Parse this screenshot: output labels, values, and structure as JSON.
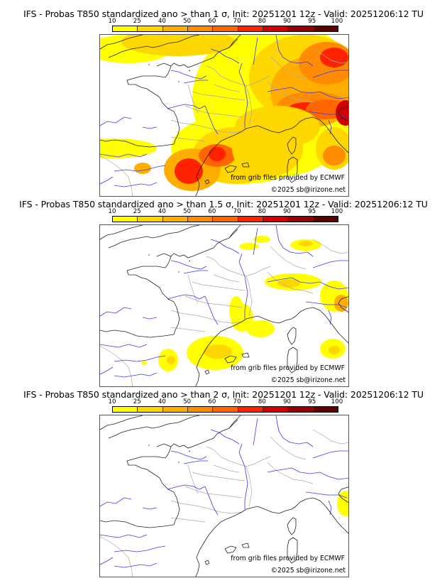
{
  "colorbar": {
    "ticks": [
      "10",
      "25",
      "40",
      "50",
      "60",
      "70",
      "80",
      "90",
      "95",
      "100"
    ],
    "colors": [
      "#ffff00",
      "#ffd700",
      "#ffae00",
      "#ff8c00",
      "#ff6600",
      "#ff2200",
      "#d40000",
      "#960000",
      "#5c0000"
    ]
  },
  "panels": [
    {
      "title": "IFS - Probas T850  standardized ano > than 1 σ, Init: 20251201 12z - Valid: 20251206:12 TU",
      "threshold_sigma": 1,
      "credit_source": "from grib files provided by ECMWF",
      "credit_copyright": "©2025 sb@irizone.net"
    },
    {
      "title": "IFS - Probas T850  standardized ano > than 1.5 σ, Init: 20251201 12z - Valid: 20251206:12 TU",
      "threshold_sigma": 1.5,
      "credit_source": "from grib files provided by ECMWF",
      "credit_copyright": "©2025 sb@irizone.net"
    },
    {
      "title": "IFS - Probas T850  standardized ano > than 2 σ, Init: 20251201 12z - Valid: 20251206:12 TU",
      "threshold_sigma": 2,
      "credit_source": "from grib files provided by ECMWF",
      "credit_copyright": "©2025 sb@irizone.net"
    }
  ],
  "styles": {
    "coast_color": "#222222",
    "river_color": "#3a3af0",
    "border_color": "#aaaaaa"
  }
}
